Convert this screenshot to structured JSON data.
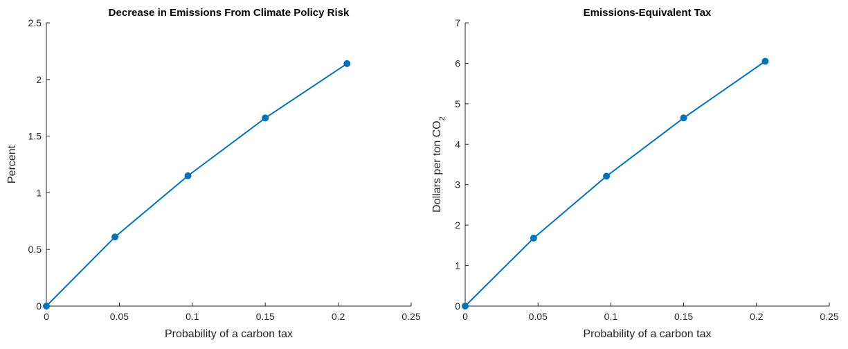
{
  "chart_data": [
    {
      "type": "line",
      "title": "Decrease in Emissions From Climate Policy Risk",
      "xlabel": "Probability of a carbon tax",
      "ylabel": "Percent",
      "xlim": [
        0,
        0.25
      ],
      "ylim": [
        0,
        2.5
      ],
      "xticks": [
        "0",
        "0.05",
        "0.1",
        "0.15",
        "0.2",
        "0.25"
      ],
      "yticks": [
        "0",
        "0.5",
        "1",
        "1.5",
        "2",
        "2.5"
      ],
      "grid": false,
      "series": [
        {
          "x": [
            0,
            0.047,
            0.097,
            0.15,
            0.206
          ],
          "y": [
            0,
            0.61,
            1.15,
            1.66,
            2.14
          ]
        }
      ],
      "color": "#0072BD"
    },
    {
      "type": "line",
      "title": "Emissions-Equivalent Tax",
      "xlabel": "Probability of a carbon tax",
      "ylabel": "Dollars per ton CO",
      "ylabel_subscript": "2",
      "xlim": [
        0,
        0.25
      ],
      "ylim": [
        0,
        7
      ],
      "xticks": [
        "0",
        "0.05",
        "0.1",
        "0.15",
        "0.2",
        "0.25"
      ],
      "yticks": [
        "0",
        "1",
        "2",
        "3",
        "4",
        "5",
        "6",
        "7"
      ],
      "grid": false,
      "series": [
        {
          "x": [
            0,
            0.047,
            0.097,
            0.15,
            0.206
          ],
          "y": [
            0,
            1.68,
            3.21,
            4.65,
            6.05
          ]
        }
      ],
      "color": "#0072BD"
    }
  ]
}
